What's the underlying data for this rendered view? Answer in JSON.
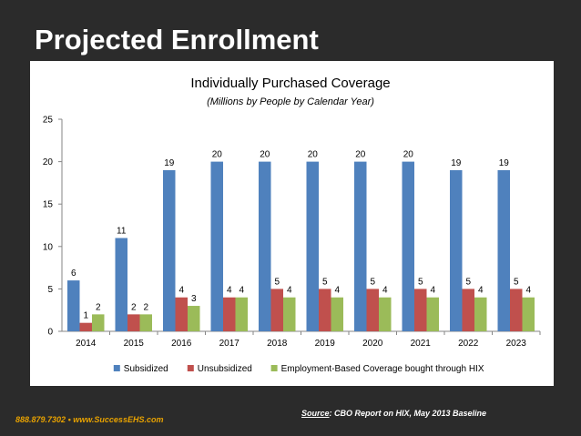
{
  "slide": {
    "title": "Projected Enrollment",
    "contact_phone": "888.879.7302",
    "contact_separator": "•",
    "contact_website": "www.SuccessEHS.com",
    "source_label": "Source",
    "source_text": ": CBO Report on HIX, May 2013 Baseline"
  },
  "chart_data": {
    "type": "bar",
    "title": "Individually Purchased Coverage",
    "subtitle": "(Millions by People by Calendar Year)",
    "xlabel": "",
    "ylabel": "",
    "categories": [
      "2014",
      "2015",
      "2016",
      "2017",
      "2018",
      "2019",
      "2020",
      "2021",
      "2022",
      "2023"
    ],
    "ylim": [
      0,
      25
    ],
    "yticks": [
      0,
      5,
      10,
      15,
      20,
      25
    ],
    "grid": false,
    "legend_position": "bottom",
    "series": [
      {
        "name": "Subsidized",
        "color": "#4f81bd",
        "values": [
          6,
          11,
          19,
          20,
          20,
          20,
          20,
          20,
          19,
          19
        ]
      },
      {
        "name": "Unsubsidized",
        "color": "#c0504d",
        "values": [
          1,
          2,
          4,
          4,
          5,
          5,
          5,
          5,
          5,
          5
        ]
      },
      {
        "name": "Employment-Based Coverage bought through HIX",
        "color": "#9bbb59",
        "values": [
          2,
          2,
          3,
          4,
          4,
          4,
          4,
          4,
          4,
          4
        ]
      }
    ]
  }
}
